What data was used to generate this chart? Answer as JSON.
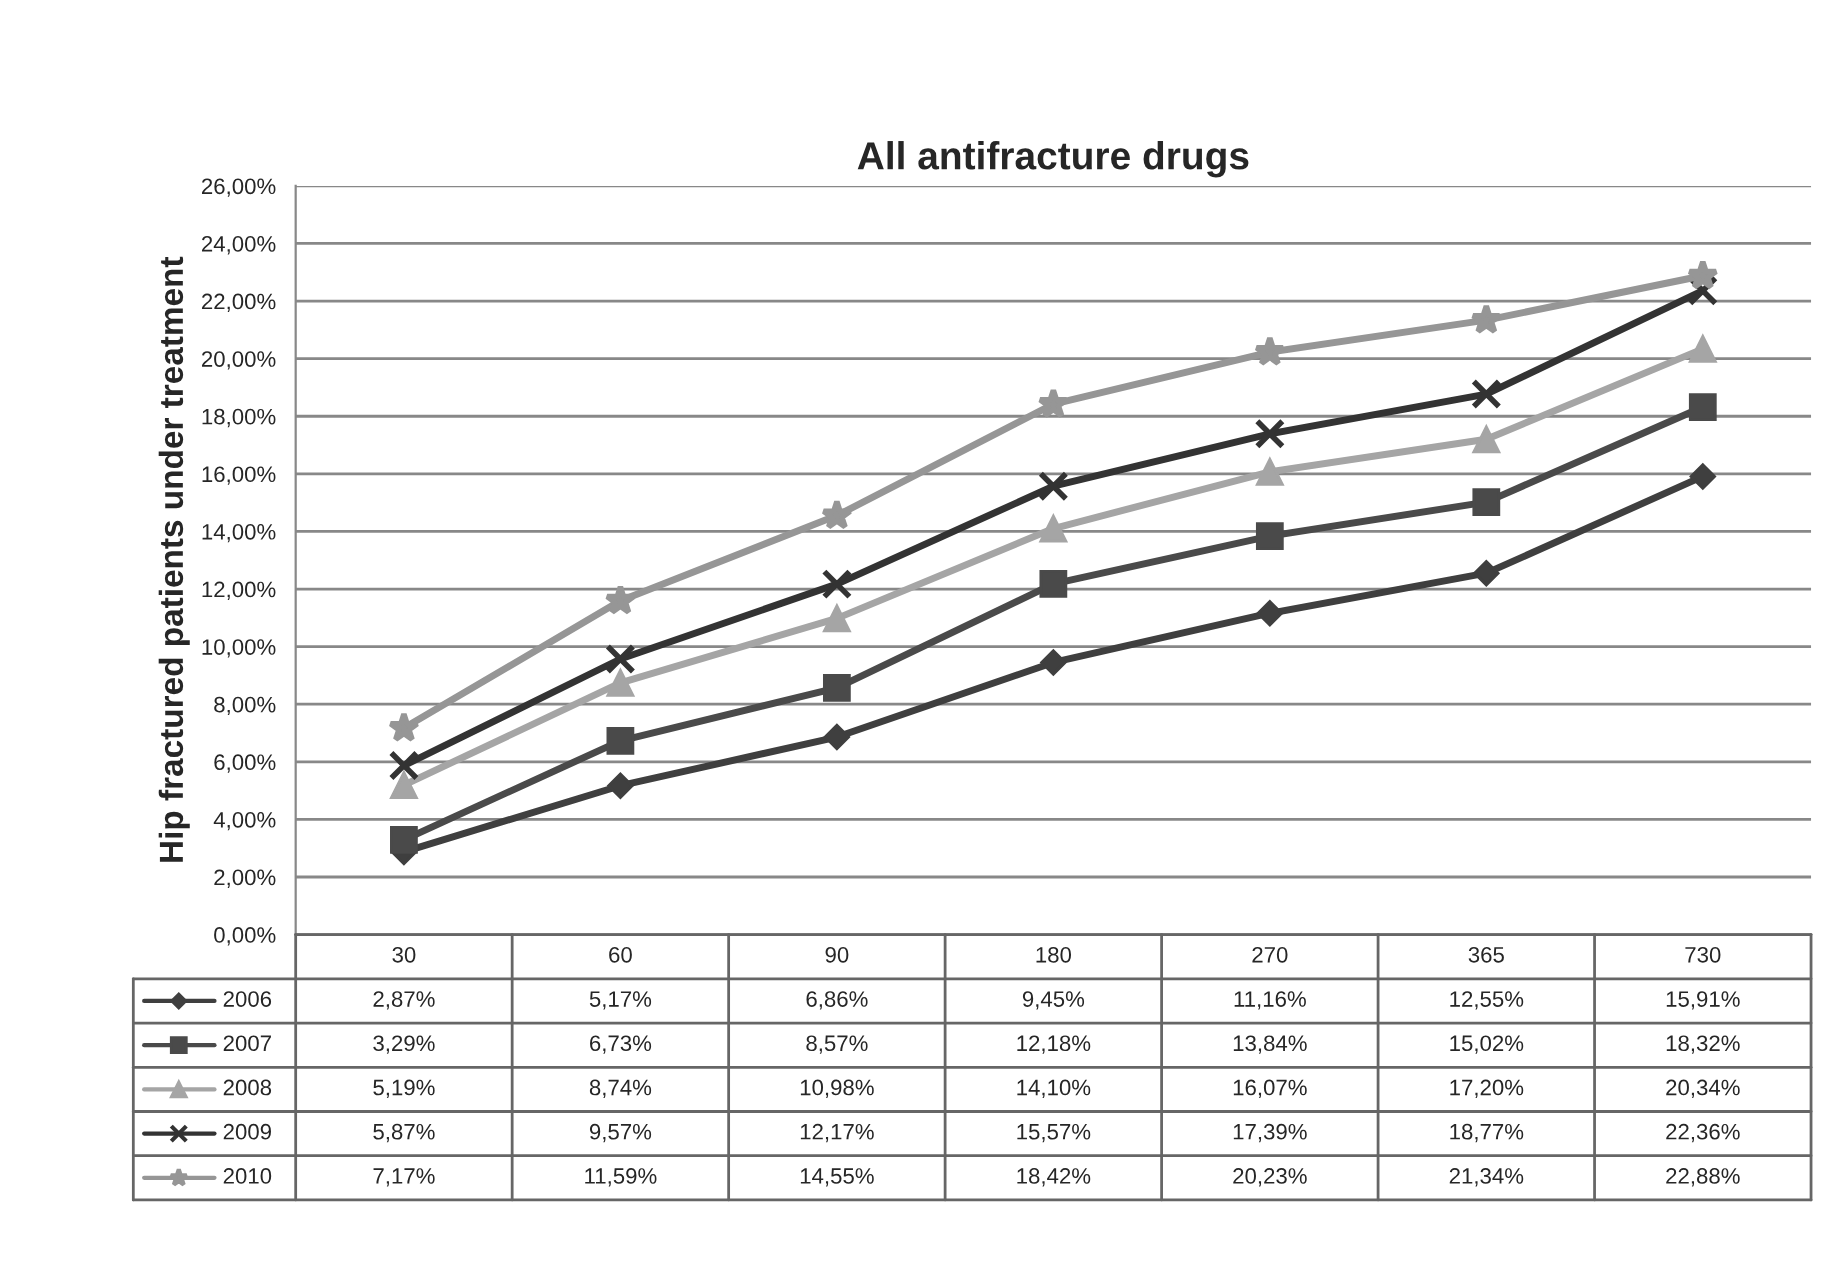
{
  "chart_data": {
    "type": "line",
    "title": "All antifracture drugs",
    "ylabel": "Hip fractured patients under treatment",
    "categories": [
      "30",
      "60",
      "90",
      "180",
      "270",
      "365",
      "730"
    ],
    "ylim": [
      0,
      26
    ],
    "yticks": [
      {
        "value": 0,
        "label": "0,00%"
      },
      {
        "value": 2,
        "label": "2,00%"
      },
      {
        "value": 4,
        "label": "4,00%"
      },
      {
        "value": 6,
        "label": "6,00%"
      },
      {
        "value": 8,
        "label": "8,00%"
      },
      {
        "value": 10,
        "label": "10,00%"
      },
      {
        "value": 12,
        "label": "12,00%"
      },
      {
        "value": 14,
        "label": "14,00%"
      },
      {
        "value": 16,
        "label": "16,00%"
      },
      {
        "value": 18,
        "label": "18,00%"
      },
      {
        "value": 20,
        "label": "20,00%"
      },
      {
        "value": 22,
        "label": "22,00%"
      },
      {
        "value": 24,
        "label": "24,00%"
      },
      {
        "value": 26,
        "label": "26,00%"
      }
    ],
    "grid": "y",
    "legend": "bottom",
    "line_style": "solid",
    "series": [
      {
        "name": "2006",
        "color": "#3f3f3f",
        "marker": "diamond",
        "values": [
          2.87,
          5.17,
          6.86,
          9.45,
          11.16,
          12.55,
          15.91
        ],
        "value_labels": [
          "2,87%",
          "5,17%",
          "6,86%",
          "9,45%",
          "11,16%",
          "12,55%",
          "15,91%"
        ]
      },
      {
        "name": "2007",
        "color": "#4a4a4a",
        "marker": "square",
        "values": [
          3.29,
          6.73,
          8.57,
          12.18,
          13.84,
          15.02,
          18.32
        ],
        "value_labels": [
          "3,29%",
          "6,73%",
          "8,57%",
          "12,18%",
          "13,84%",
          "15,02%",
          "18,32%"
        ]
      },
      {
        "name": "2008",
        "color": "#a5a5a5",
        "marker": "triangle",
        "values": [
          5.19,
          8.74,
          10.98,
          14.1,
          16.07,
          17.2,
          20.34
        ],
        "value_labels": [
          "5,19%",
          "8,74%",
          "10,98%",
          "14,10%",
          "16,07%",
          "17,20%",
          "20,34%"
        ]
      },
      {
        "name": "2009",
        "color": "#333333",
        "marker": "cross",
        "values": [
          5.87,
          9.57,
          12.17,
          15.57,
          17.39,
          18.77,
          22.36
        ],
        "value_labels": [
          "5,87%",
          "9,57%",
          "12,17%",
          "15,57%",
          "17,39%",
          "18,77%",
          "22,36%"
        ]
      },
      {
        "name": "2010",
        "color": "#969696",
        "marker": "star",
        "values": [
          7.17,
          11.59,
          14.55,
          18.42,
          20.23,
          21.34,
          22.88
        ],
        "value_labels": [
          "7,17%",
          "11,59%",
          "14,55%",
          "18,42%",
          "20,23%",
          "21,34%",
          "22,88%"
        ]
      }
    ]
  }
}
